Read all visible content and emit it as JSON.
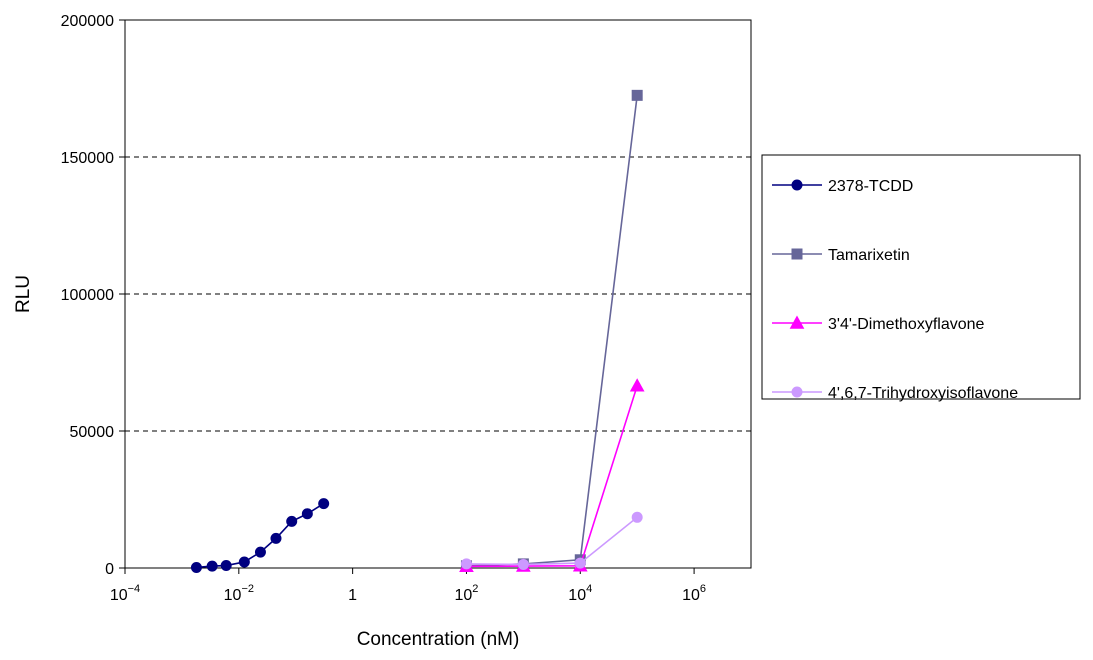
{
  "chart_data": {
    "type": "line",
    "title": "",
    "xlabel": "Concentration (nM)",
    "ylabel": "RLU",
    "x_scale": "log",
    "xlim_log10": [
      -4,
      7
    ],
    "ylim": [
      0,
      200000
    ],
    "x_ticks": [
      {
        "exp": -4,
        "base": "10",
        "sup": "−4"
      },
      {
        "exp": -2,
        "base": "10",
        "sup": "−2"
      },
      {
        "exp": 0,
        "base": "1",
        "sup": ""
      },
      {
        "exp": 2,
        "base": "10",
        "sup": "2"
      },
      {
        "exp": 4,
        "base": "10",
        "sup": "4"
      },
      {
        "exp": 6,
        "base": "10",
        "sup": "6"
      }
    ],
    "y_ticks": [
      0,
      50000,
      100000,
      150000,
      200000
    ],
    "grid": "horizontal dashed",
    "legend_position": "right",
    "series": [
      {
        "name": "2378-TCDD",
        "color": "#000080",
        "marker": "circle",
        "points": [
          {
            "x": 0.0018,
            "y": 200
          },
          {
            "x": 0.0034,
            "y": 700
          },
          {
            "x": 0.006,
            "y": 900
          },
          {
            "x": 0.0125,
            "y": 2200
          },
          {
            "x": 0.024,
            "y": 5800
          },
          {
            "x": 0.045,
            "y": 10800
          },
          {
            "x": 0.085,
            "y": 17000
          },
          {
            "x": 0.16,
            "y": 19800
          },
          {
            "x": 0.31,
            "y": 23500
          }
        ]
      },
      {
        "name": "Tamarixetin",
        "color": "#666699",
        "marker": "square",
        "points": [
          {
            "x": 100,
            "y": 800
          },
          {
            "x": 1000,
            "y": 1500
          },
          {
            "x": 10000,
            "y": 3000
          },
          {
            "x": 100000,
            "y": 172500
          }
        ]
      },
      {
        "name": "3'4'-Dimethoxyflavone",
        "color": "#FF00FF",
        "marker": "triangle",
        "points": [
          {
            "x": 100,
            "y": 600
          },
          {
            "x": 1000,
            "y": 700
          },
          {
            "x": 10000,
            "y": 800
          },
          {
            "x": 100000,
            "y": 66500
          }
        ]
      },
      {
        "name": "4',6,7-Trihydroxyisoflavone",
        "color": "#CC99FF",
        "marker": "circle",
        "points": [
          {
            "x": 100,
            "y": 1500
          },
          {
            "x": 1000,
            "y": 1300
          },
          {
            "x": 10000,
            "y": 1800
          },
          {
            "x": 100000,
            "y": 18500
          }
        ]
      }
    ]
  }
}
